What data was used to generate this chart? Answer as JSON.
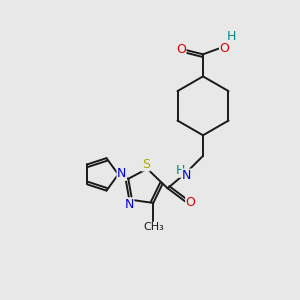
{
  "background_color": "#e8e8e8",
  "bond_color": "#1a1a1a",
  "atom_colors": {
    "O": "#dd0000",
    "N": "#0000cc",
    "S": "#aaaa00",
    "H": "#008888",
    "C": "#1a1a1a"
  },
  "font_size": 8,
  "fig_width": 3.0,
  "fig_height": 3.0,
  "dpi": 100
}
